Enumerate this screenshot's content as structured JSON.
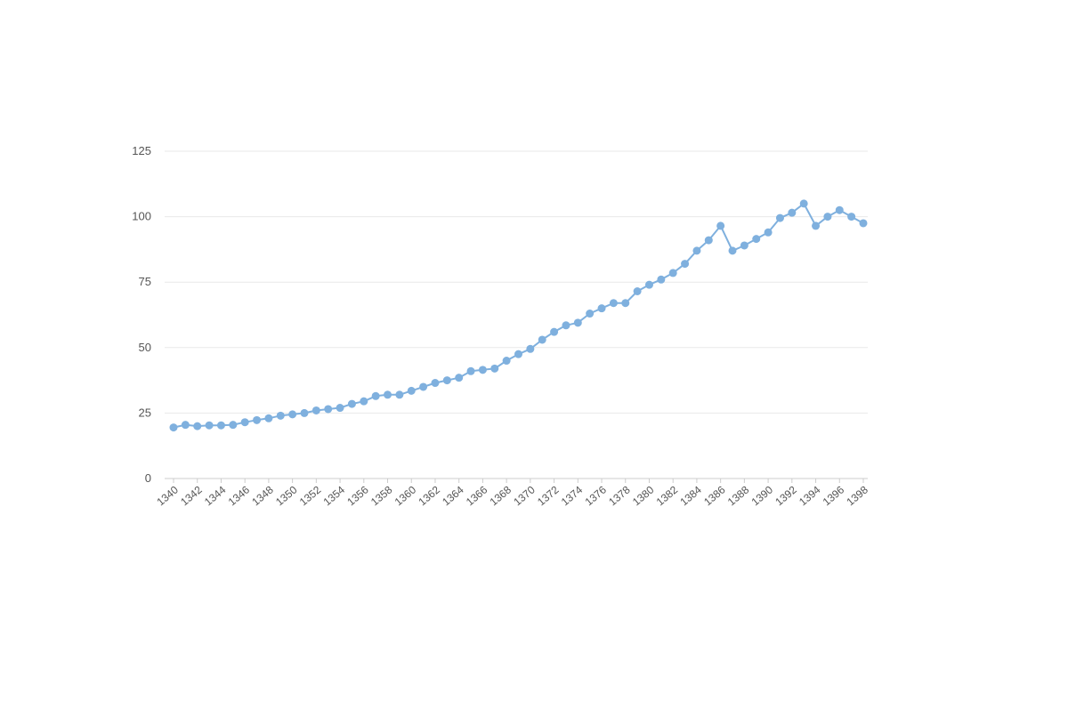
{
  "chart_data": {
    "type": "line",
    "title": "",
    "xlabel": "",
    "ylabel": "",
    "ylim": [
      0,
      125
    ],
    "xlim": [
      1340,
      1398
    ],
    "y_ticks": [
      "0",
      "25",
      "50",
      "75",
      "100",
      "125"
    ],
    "x_tick_labels": [
      "1340",
      "1342",
      "1344",
      "1346",
      "1348",
      "1350",
      "1352",
      "1354",
      "1356",
      "1358",
      "1360",
      "1362",
      "1364",
      "1366",
      "1368",
      "1370",
      "1372",
      "1374",
      "1376",
      "1378",
      "1380",
      "1382",
      "1384",
      "1386",
      "1388",
      "1390",
      "1392",
      "1394",
      "1396",
      "1398"
    ],
    "grid": "horizontal",
    "legend": "none",
    "series": [
      {
        "color": "#7fb0de",
        "x": [
          1340,
          1341,
          1342,
          1343,
          1344,
          1345,
          1346,
          1347,
          1348,
          1349,
          1350,
          1351,
          1352,
          1353,
          1354,
          1355,
          1356,
          1357,
          1358,
          1359,
          1360,
          1361,
          1362,
          1363,
          1364,
          1365,
          1366,
          1367,
          1368,
          1369,
          1370,
          1371,
          1372,
          1373,
          1374,
          1375,
          1376,
          1377,
          1378,
          1379,
          1380,
          1381,
          1382,
          1383,
          1384,
          1385,
          1386,
          1387,
          1388,
          1389,
          1390,
          1391,
          1392,
          1393,
          1394,
          1395,
          1396,
          1397,
          1398
        ],
        "values": [
          19.5,
          20.5,
          20,
          20.3,
          20.3,
          20.5,
          21.5,
          22.3,
          23,
          24,
          24.5,
          25,
          26,
          26.5,
          27,
          28.5,
          29.5,
          31.5,
          32,
          32,
          33.5,
          35,
          36.5,
          37.5,
          38.5,
          41,
          41.5,
          42,
          45,
          47.5,
          49.5,
          53,
          56,
          58.5,
          59.5,
          63,
          65,
          67,
          67,
          71.5,
          74,
          76,
          78.5,
          82,
          87,
          91,
          96.5,
          87,
          89,
          91.5,
          94,
          99.5,
          101.5,
          105,
          96.5,
          100,
          102.5,
          100,
          97.5
        ]
      }
    ]
  }
}
